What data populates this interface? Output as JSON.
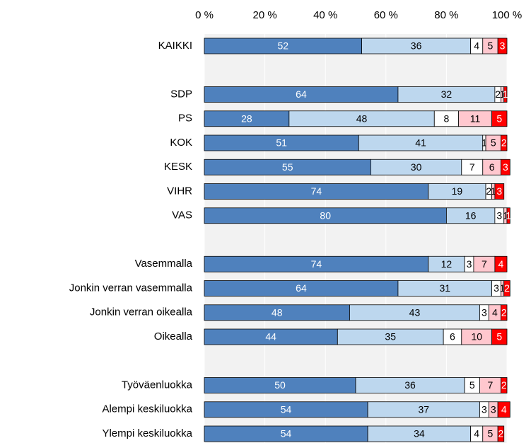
{
  "chart_data": {
    "type": "stacked-bar-horizontal",
    "categories": [
      "KAIKKI",
      null,
      "SDP",
      "PS",
      "KOK",
      "KESK",
      "VIHR",
      "VAS",
      null,
      "Vasemmalla",
      "Jonkin verran vasemmalla",
      "Jonkin verran oikealla",
      "Oikealla",
      null,
      "Työväenluokka",
      "Alempi keskiluokka",
      "Ylempi keskiluokka"
    ],
    "series": [
      {
        "color": "#4f81bd",
        "values": [
          52,
          null,
          64,
          28,
          51,
          55,
          74,
          80,
          null,
          74,
          64,
          48,
          44,
          null,
          50,
          54,
          54
        ]
      },
      {
        "color": "#bdd7ee",
        "values": [
          36,
          null,
          32,
          48,
          41,
          30,
          19,
          16,
          null,
          12,
          31,
          43,
          35,
          null,
          36,
          37,
          34
        ]
      },
      {
        "color": "#ffffff",
        "values": [
          4,
          null,
          2,
          8,
          1,
          7,
          2,
          3,
          null,
          3,
          3,
          3,
          6,
          null,
          5,
          3,
          4
        ]
      },
      {
        "color": "#ffc7ce",
        "values": [
          5,
          null,
          1,
          11,
          5,
          6,
          1,
          1,
          null,
          7,
          1,
          4,
          10,
          null,
          7,
          3,
          5
        ]
      },
      {
        "color": "#ff0000",
        "values": [
          3,
          null,
          1,
          5,
          2,
          3,
          3,
          1,
          null,
          4,
          2,
          2,
          5,
          null,
          2,
          4,
          2
        ]
      }
    ],
    "xlim": [
      0,
      100
    ],
    "xticks": [
      {
        "value": 0,
        "label": "0 %"
      },
      {
        "value": 20,
        "label": "20 %"
      },
      {
        "value": 40,
        "label": "40 %"
      },
      {
        "value": 60,
        "label": "60 %"
      },
      {
        "value": 80,
        "label": "80 %"
      },
      {
        "value": 100,
        "label": "100 %"
      }
    ],
    "grid": true
  }
}
